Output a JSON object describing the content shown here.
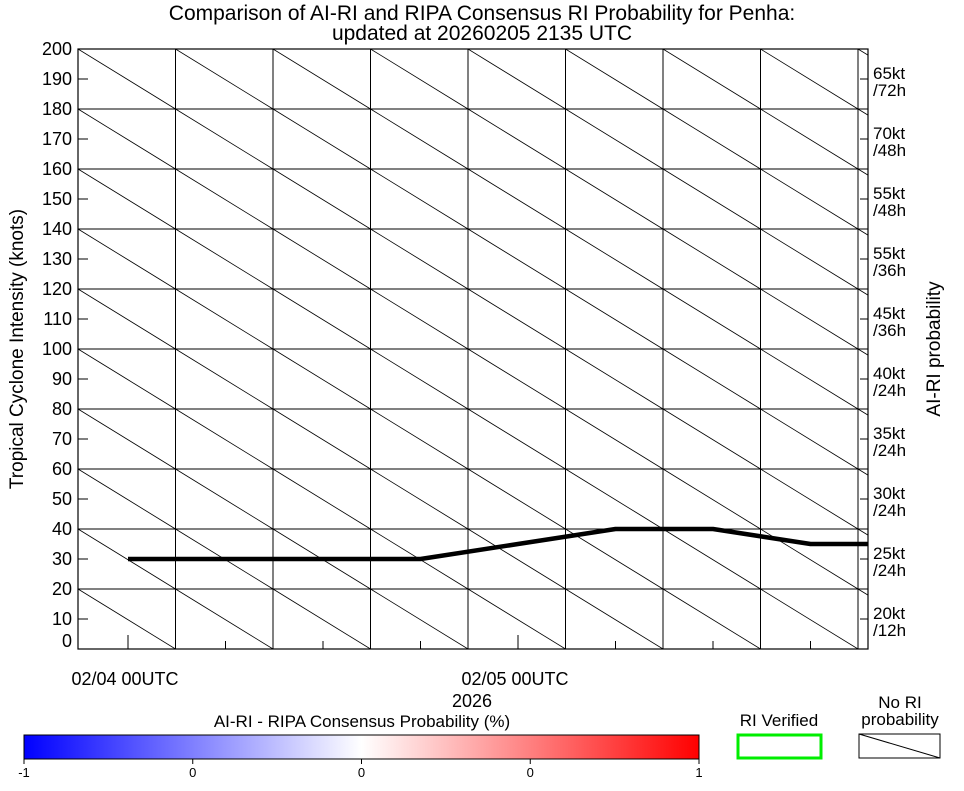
{
  "chart_data": {
    "type": "line",
    "title": "Comparison of AI-RI and RIPA Consensus RI Probability for Penha:",
    "subtitle": "updated at 20260205 2135 UTC",
    "ylabel": "Tropical Cyclone Intensity (knots)",
    "ylabel_right": "AI-RI probability",
    "xlabel": "2026",
    "ylim": [
      0,
      200
    ],
    "y_ticks": [
      "0",
      "10",
      "20",
      "30",
      "40",
      "50",
      "60",
      "70",
      "80",
      "90",
      "100",
      "110",
      "120",
      "130",
      "140",
      "150",
      "160",
      "170",
      "180",
      "190",
      "200"
    ],
    "x_tick_labels": [
      "02/04 00UTC",
      "02/05 00UTC"
    ],
    "x_hours": [
      0,
      6,
      12,
      18,
      24,
      30,
      36,
      42
    ],
    "intensity": [
      30,
      30,
      30,
      30,
      35,
      40,
      40,
      35
    ],
    "right_labels": [
      {
        "kt": "65kt",
        "hr": "/72h"
      },
      {
        "kt": "70kt",
        "hr": "/48h"
      },
      {
        "kt": "55kt",
        "hr": "/48h"
      },
      {
        "kt": "55kt",
        "hr": "/36h"
      },
      {
        "kt": "45kt",
        "hr": "/36h"
      },
      {
        "kt": "40kt",
        "hr": "/24h"
      },
      {
        "kt": "35kt",
        "hr": "/24h"
      },
      {
        "kt": "30kt",
        "hr": "/24h"
      },
      {
        "kt": "25kt",
        "hr": "/24h"
      },
      {
        "kt": "20kt",
        "hr": "/12h"
      }
    ],
    "grid": true,
    "colorbar": {
      "label": "AI-RI - RIPA Consensus Probability (%)",
      "ticks": [
        "-1",
        "0",
        "0",
        "0",
        "1"
      ],
      "colors": [
        "#0000ff",
        "#ffffff",
        "#ff0000"
      ]
    },
    "legend": {
      "verified_label": "RI Verified",
      "verified_color": "#00ee00",
      "nori_line1": "No RI",
      "nori_line2": "probability"
    }
  }
}
